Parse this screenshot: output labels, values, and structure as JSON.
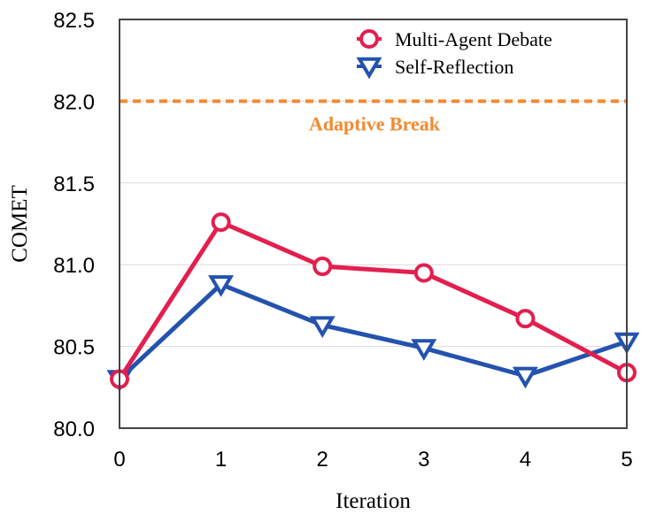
{
  "chart_data": {
    "type": "line",
    "title": "",
    "xlabel": "Iteration",
    "ylabel": "COMET",
    "x": [
      0,
      1,
      2,
      3,
      4,
      5
    ],
    "xlim": [
      0,
      5
    ],
    "ylim": [
      80.0,
      82.5
    ],
    "x_ticks": [
      "0",
      "1",
      "2",
      "3",
      "4",
      "5"
    ],
    "y_ticks": [
      "80.0",
      "80.5",
      "81.0",
      "81.5",
      "82.0",
      "82.5"
    ],
    "y_tick_values": [
      80.0,
      80.5,
      81.0,
      81.5,
      82.0,
      82.5
    ],
    "grid": true,
    "legend_position": "top-right",
    "series": [
      {
        "name": "Multi-Agent Debate",
        "values": [
          80.3,
          81.26,
          80.99,
          80.95,
          80.67,
          80.34
        ],
        "color": "#e21f4e",
        "marker": "circle-open"
      },
      {
        "name": "Self-Reflection",
        "values": [
          80.3,
          80.88,
          80.63,
          80.49,
          80.32,
          80.53
        ],
        "color": "#2452ae",
        "marker": "triangle-down-open"
      }
    ],
    "reference_line": {
      "label": "Adaptive Break",
      "value": 82.0,
      "color": "#f28a30",
      "style": "dashed"
    }
  }
}
